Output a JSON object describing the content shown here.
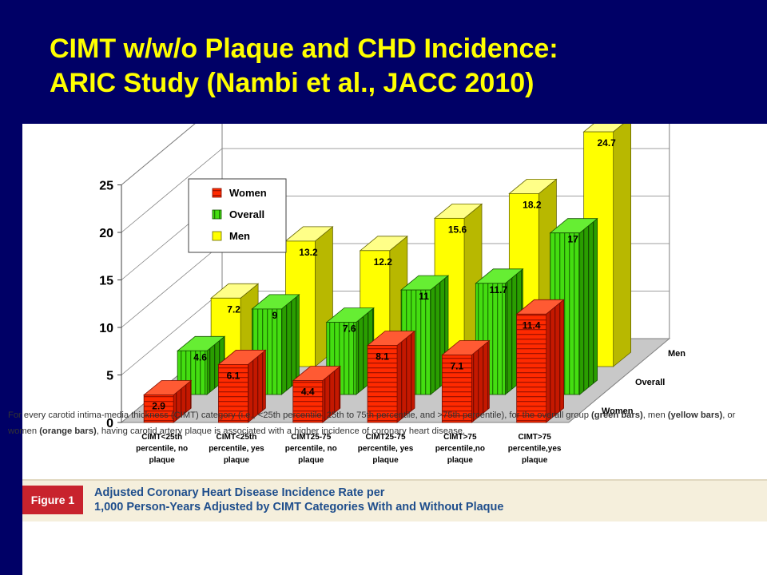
{
  "slide": {
    "title_line1": "CIMT w/w/o Plaque and CHD Incidence:",
    "title_line2": "ARIC Study (Nambi et al., JACC 2010)"
  },
  "colors": {
    "background": "#000066",
    "title": "#ffff00",
    "women": "#ff2a00",
    "overall": "#33cc00",
    "men": "#ffff00"
  },
  "chart_data": {
    "type": "bar",
    "ylim": [
      0,
      25
    ],
    "yticks": [
      "0",
      "5",
      "10",
      "15",
      "20",
      "25"
    ],
    "categories": [
      [
        "CIMT<25th",
        "percentile, no",
        "plaque"
      ],
      [
        "CIMT<25th",
        "percentile, yes",
        "plaque"
      ],
      [
        "CIMT25-75",
        "percentile, no",
        "plaque"
      ],
      [
        "CIMT25-75",
        "percentile, yes",
        "plaque"
      ],
      [
        "CIMT>75",
        "percentile,no",
        "plaque"
      ],
      [
        "CIMT>75",
        "percentile,yes",
        "plaque"
      ]
    ],
    "series": [
      {
        "name": "Women",
        "values": [
          2.9,
          6.1,
          4.4,
          8.1,
          7.1,
          11.4
        ],
        "labels": [
          "2.9",
          "6.1",
          "4.4",
          "8.1",
          "7.1",
          "11.4"
        ]
      },
      {
        "name": "Overall",
        "values": [
          4.6,
          9,
          7.6,
          11,
          11.7,
          17
        ],
        "labels": [
          "4.6",
          "9",
          "7.6",
          "11",
          "11.7",
          "17"
        ]
      },
      {
        "name": "Men",
        "values": [
          7.2,
          13.2,
          12.2,
          15.6,
          18.2,
          24.7
        ],
        "labels": [
          "7.2",
          "13.2",
          "12.2",
          "15.6",
          "18.2",
          "24.7"
        ]
      }
    ],
    "depth_labels": [
      "Women",
      "Overall",
      "Men"
    ],
    "legend": {
      "position": "top-left",
      "entries": [
        "Women",
        "Overall",
        "Men"
      ]
    },
    "grid": true
  },
  "caption": {
    "figure_label": "Figure 1",
    "title_line1": "Adjusted Coronary Heart Disease Incidence Rate per",
    "title_line2": "1,000 Person-Years Adjusted by CIMT Categories With and Without Plaque",
    "body_part1": "For every carotid intima-media thickness (CIMT) category (i.e., <25th percentile, 25th to 75th percentile, and >75th percentile), for the overall group",
    "green_bars": "(green bars)",
    "body_part2": ", men ",
    "yellow_bars": "(yellow bars)",
    "body_part3": ", or women ",
    "orange_bars": "(orange bars)",
    "body_part4": ", having carotid artery plaque is associated with a higher incidence of coronary heart disease."
  }
}
